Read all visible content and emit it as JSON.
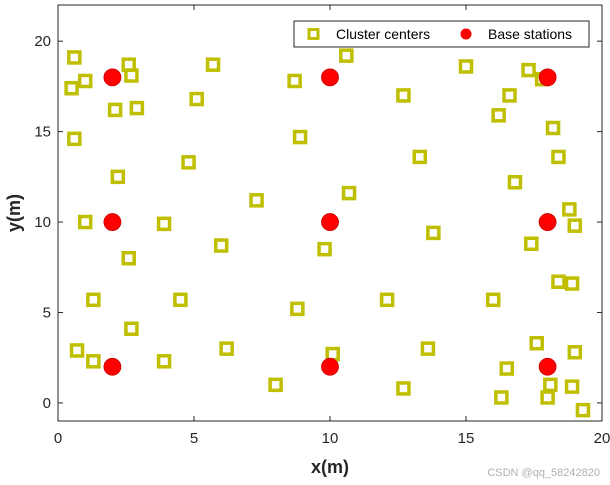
{
  "chart_data": {
    "type": "scatter",
    "xlabel": "x(m)",
    "ylabel": "y(m)",
    "xlim": [
      0,
      20
    ],
    "ylim": [
      -1,
      22
    ],
    "xticks": [
      0,
      5,
      10,
      15,
      20
    ],
    "yticks": [
      0,
      5,
      10,
      15,
      20
    ],
    "grid": false,
    "legend_position": "top-right",
    "series": [
      {
        "name": "Cluster centers",
        "marker": "square",
        "color": "#bfbf00",
        "points": [
          [
            0.6,
            19.1
          ],
          [
            2.6,
            18.7
          ],
          [
            5.7,
            18.7
          ],
          [
            10.6,
            19.2
          ],
          [
            15.0,
            18.6
          ],
          [
            17.3,
            18.4
          ],
          [
            0.5,
            17.4
          ],
          [
            1.0,
            17.8
          ],
          [
            2.7,
            18.1
          ],
          [
            8.7,
            17.8
          ],
          [
            17.8,
            17.9
          ],
          [
            2.1,
            16.2
          ],
          [
            2.9,
            16.3
          ],
          [
            5.1,
            16.8
          ],
          [
            12.7,
            17.0
          ],
          [
            16.6,
            17.0
          ],
          [
            16.2,
            15.9
          ],
          [
            0.6,
            14.6
          ],
          [
            8.9,
            14.7
          ],
          [
            18.2,
            15.2
          ],
          [
            4.8,
            13.3
          ],
          [
            13.3,
            13.6
          ],
          [
            18.4,
            13.6
          ],
          [
            2.2,
            12.5
          ],
          [
            10.7,
            11.6
          ],
          [
            7.3,
            11.2
          ],
          [
            16.8,
            12.2
          ],
          [
            18.8,
            10.7
          ],
          [
            1.0,
            10.0
          ],
          [
            3.9,
            9.9
          ],
          [
            19.0,
            9.8
          ],
          [
            6.0,
            8.7
          ],
          [
            9.8,
            8.5
          ],
          [
            13.8,
            9.4
          ],
          [
            17.4,
            8.8
          ],
          [
            2.6,
            8.0
          ],
          [
            18.4,
            6.7
          ],
          [
            18.9,
            6.6
          ],
          [
            1.3,
            5.7
          ],
          [
            4.5,
            5.7
          ],
          [
            8.8,
            5.2
          ],
          [
            12.1,
            5.7
          ],
          [
            16.0,
            5.7
          ],
          [
            2.7,
            4.1
          ],
          [
            6.2,
            3.0
          ],
          [
            13.6,
            3.0
          ],
          [
            17.6,
            3.3
          ],
          [
            0.7,
            2.9
          ],
          [
            1.3,
            2.3
          ],
          [
            3.9,
            2.3
          ],
          [
            10.1,
            2.7
          ],
          [
            19.0,
            2.8
          ],
          [
            16.5,
            1.9
          ],
          [
            8.0,
            1.0
          ],
          [
            12.7,
            0.8
          ],
          [
            16.3,
            0.3
          ],
          [
            18.1,
            1.0
          ],
          [
            18.9,
            0.9
          ],
          [
            18.0,
            0.3
          ],
          [
            19.3,
            -0.4
          ]
        ]
      },
      {
        "name": "Base stations",
        "marker": "circle",
        "color": "#ff0000",
        "points": [
          [
            2,
            2
          ],
          [
            10,
            2
          ],
          [
            18,
            2
          ],
          [
            2,
            10
          ],
          [
            10,
            10
          ],
          [
            18,
            10
          ],
          [
            2,
            18
          ],
          [
            10,
            18
          ],
          [
            18,
            18
          ]
        ]
      }
    ]
  },
  "watermark": "CSDN @qq_58242820"
}
